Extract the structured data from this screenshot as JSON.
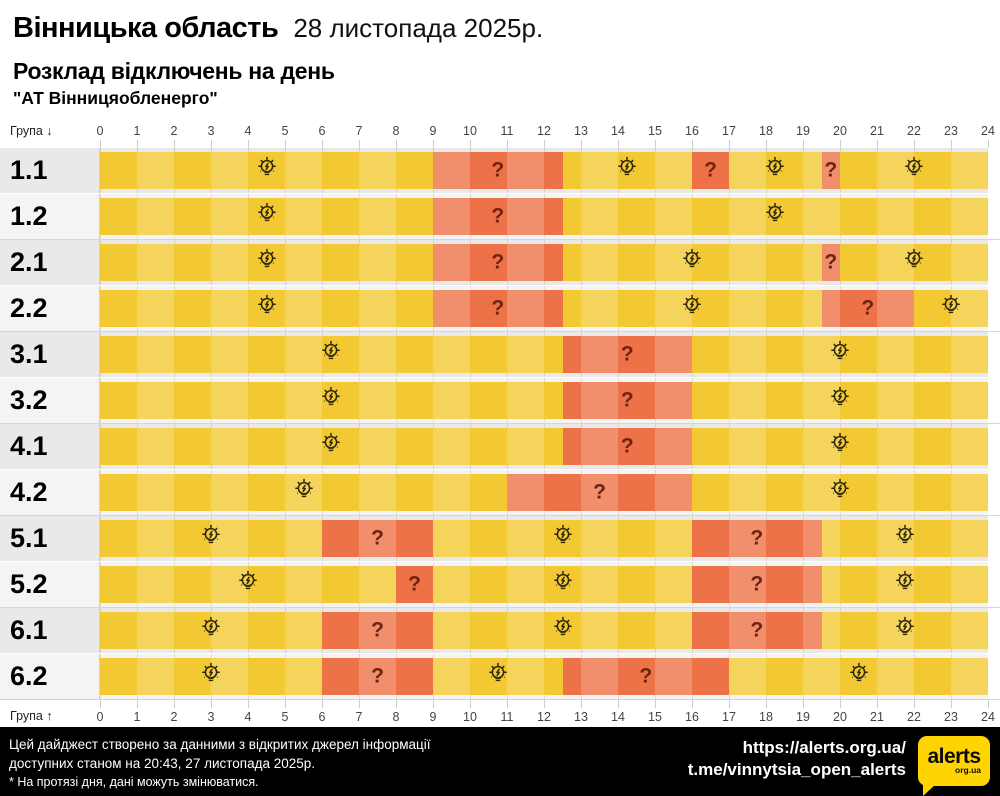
{
  "header": {
    "region": "Вінницька область",
    "date": "28 листопада 2025р.",
    "subtitle": "Розклад відключень на день",
    "provider": "\"АТ Вінницяобленерго\""
  },
  "axis": {
    "group_label": "Група",
    "arrow_down": "↓",
    "arrow_up": "↑",
    "hours": [
      0,
      1,
      2,
      3,
      4,
      5,
      6,
      7,
      8,
      9,
      10,
      11,
      12,
      13,
      14,
      15,
      16,
      17,
      18,
      19,
      20,
      21,
      22,
      23,
      24
    ]
  },
  "chart_data": {
    "type": "timeline-schedule",
    "x_unit": "hour",
    "x_range": [
      0,
      24
    ],
    "on_marker": "bulb-icon",
    "off_marker": "?",
    "colors": {
      "on": "#f2c933",
      "off": "#ee7247",
      "row_band_odd": "#e9e9e9",
      "row_band_even": "#f4f4f4",
      "question": "#6e2410",
      "logo_yellow": "#ffd400"
    },
    "rows": [
      {
        "group": "1.1",
        "segments": [
          {
            "state": "on",
            "from": 0,
            "to": 9
          },
          {
            "state": "off",
            "from": 9,
            "to": 12.5
          },
          {
            "state": "on",
            "from": 12.5,
            "to": 16
          },
          {
            "state": "off",
            "from": 16,
            "to": 17
          },
          {
            "state": "on",
            "from": 17,
            "to": 19.5
          },
          {
            "state": "off",
            "from": 19.5,
            "to": 20
          },
          {
            "state": "on",
            "from": 20,
            "to": 24
          }
        ]
      },
      {
        "group": "1.2",
        "segments": [
          {
            "state": "on",
            "from": 0,
            "to": 9
          },
          {
            "state": "off",
            "from": 9,
            "to": 12.5
          },
          {
            "state": "on",
            "from": 12.5,
            "to": 24
          }
        ]
      },
      {
        "group": "2.1",
        "segments": [
          {
            "state": "on",
            "from": 0,
            "to": 9
          },
          {
            "state": "off",
            "from": 9,
            "to": 12.5
          },
          {
            "state": "on",
            "from": 12.5,
            "to": 19.5
          },
          {
            "state": "off",
            "from": 19.5,
            "to": 20
          },
          {
            "state": "on",
            "from": 20,
            "to": 24
          }
        ]
      },
      {
        "group": "2.2",
        "segments": [
          {
            "state": "on",
            "from": 0,
            "to": 9
          },
          {
            "state": "off",
            "from": 9,
            "to": 12.5
          },
          {
            "state": "on",
            "from": 12.5,
            "to": 19.5
          },
          {
            "state": "off",
            "from": 19.5,
            "to": 22
          },
          {
            "state": "on",
            "from": 22,
            "to": 24
          }
        ]
      },
      {
        "group": "3.1",
        "segments": [
          {
            "state": "on",
            "from": 0,
            "to": 12.5
          },
          {
            "state": "off",
            "from": 12.5,
            "to": 16
          },
          {
            "state": "on",
            "from": 16,
            "to": 24
          }
        ]
      },
      {
        "group": "3.2",
        "segments": [
          {
            "state": "on",
            "from": 0,
            "to": 12.5
          },
          {
            "state": "off",
            "from": 12.5,
            "to": 16
          },
          {
            "state": "on",
            "from": 16,
            "to": 24
          }
        ]
      },
      {
        "group": "4.1",
        "segments": [
          {
            "state": "on",
            "from": 0,
            "to": 12.5
          },
          {
            "state": "off",
            "from": 12.5,
            "to": 16
          },
          {
            "state": "on",
            "from": 16,
            "to": 24
          }
        ]
      },
      {
        "group": "4.2",
        "segments": [
          {
            "state": "on",
            "from": 0,
            "to": 11
          },
          {
            "state": "off",
            "from": 11,
            "to": 16
          },
          {
            "state": "on",
            "from": 16,
            "to": 24
          }
        ]
      },
      {
        "group": "5.1",
        "segments": [
          {
            "state": "on",
            "from": 0,
            "to": 6
          },
          {
            "state": "off",
            "from": 6,
            "to": 9
          },
          {
            "state": "on",
            "from": 9,
            "to": 16
          },
          {
            "state": "off",
            "from": 16,
            "to": 19.5
          },
          {
            "state": "on",
            "from": 19.5,
            "to": 24
          }
        ]
      },
      {
        "group": "5.2",
        "segments": [
          {
            "state": "on",
            "from": 0,
            "to": 8
          },
          {
            "state": "off",
            "from": 8,
            "to": 9
          },
          {
            "state": "on",
            "from": 9,
            "to": 16
          },
          {
            "state": "off",
            "from": 16,
            "to": 19.5
          },
          {
            "state": "on",
            "from": 19.5,
            "to": 24
          }
        ]
      },
      {
        "group": "6.1",
        "segments": [
          {
            "state": "on",
            "from": 0,
            "to": 6
          },
          {
            "state": "off",
            "from": 6,
            "to": 9
          },
          {
            "state": "on",
            "from": 9,
            "to": 16
          },
          {
            "state": "off",
            "from": 16,
            "to": 19.5
          },
          {
            "state": "on",
            "from": 19.5,
            "to": 24
          }
        ]
      },
      {
        "group": "6.2",
        "segments": [
          {
            "state": "on",
            "from": 0,
            "to": 6
          },
          {
            "state": "off",
            "from": 6,
            "to": 9
          },
          {
            "state": "on",
            "from": 9,
            "to": 12.5
          },
          {
            "state": "off",
            "from": 12.5,
            "to": 17
          },
          {
            "state": "on",
            "from": 17,
            "to": 24
          }
        ]
      }
    ]
  },
  "footer": {
    "line1": "Цей дайджест створено за данними з відкритих джерел інформації",
    "line2": "доступних станом на 20:43, 27 листопада 2025р.",
    "line3": "* На протязі дня, дані можуть змінюватися.",
    "url1": "https://alerts.org.ua/",
    "url2": "t.me/vinnytsia_open_alerts",
    "logo_text": "alerts",
    "logo_sub": "org.ua"
  }
}
